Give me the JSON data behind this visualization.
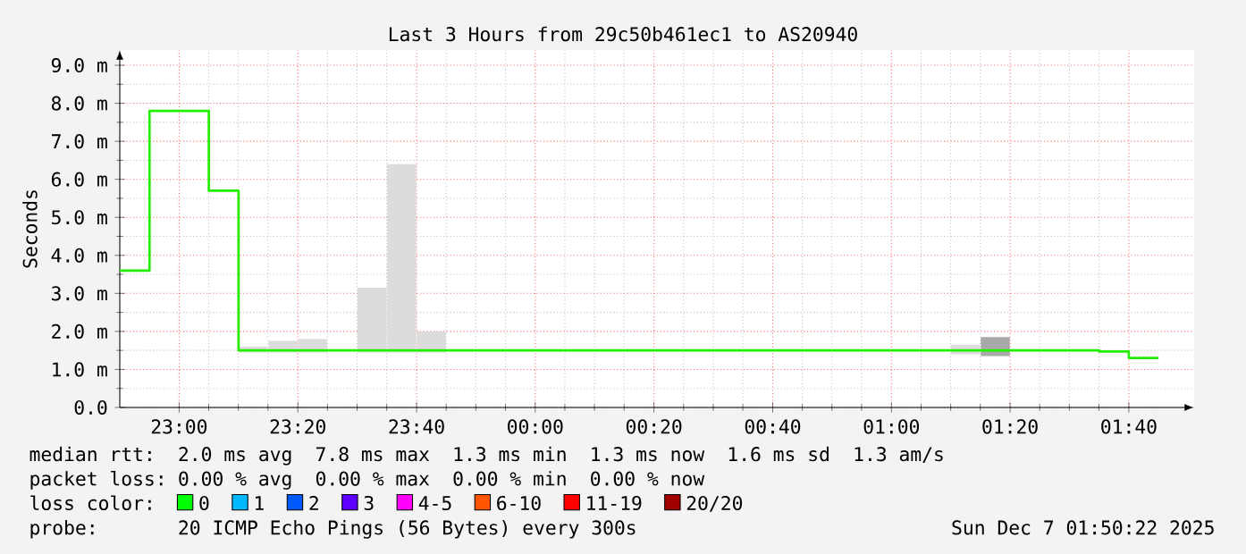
{
  "chart_data": {
    "type": "step",
    "title": "Last 3 Hours from 29c50b461ec1 to AS20940",
    "ylabel": "Seconds",
    "xlim": [
      "2025-12-06T22:50",
      "2025-12-07T01:51"
    ],
    "ylim": [
      0,
      9.4
    ],
    "xticks": [
      {
        "value": "2025-12-06T23:00",
        "label": "23:00"
      },
      {
        "value": "2025-12-06T23:20",
        "label": "23:20"
      },
      {
        "value": "2025-12-06T23:40",
        "label": "23:40"
      },
      {
        "value": "2025-12-07T00:00",
        "label": "00:00"
      },
      {
        "value": "2025-12-07T00:20",
        "label": "00:20"
      },
      {
        "value": "2025-12-07T00:40",
        "label": "00:40"
      },
      {
        "value": "2025-12-07T01:00",
        "label": "01:00"
      },
      {
        "value": "2025-12-07T01:20",
        "label": "01:20"
      },
      {
        "value": "2025-12-07T01:40",
        "label": "01:40"
      }
    ],
    "yticks": [
      {
        "value": 0,
        "label": "0.0"
      },
      {
        "value": 1,
        "label": "1.0 m"
      },
      {
        "value": 2,
        "label": "2.0 m"
      },
      {
        "value": 3,
        "label": "3.0 m"
      },
      {
        "value": 4,
        "label": "4.0 m"
      },
      {
        "value": 5,
        "label": "5.0 m"
      },
      {
        "value": 6,
        "label": "6.0 m"
      },
      {
        "value": 7,
        "label": "7.0 m"
      },
      {
        "value": 8,
        "label": "8.0 m"
      },
      {
        "value": 9,
        "label": "9.0 m"
      }
    ],
    "grid": true,
    "series": [
      {
        "type": "bar",
        "x": [
          "2025-12-06T23:12:30",
          "2025-12-06T23:17:30",
          "2025-12-06T23:22:30",
          "2025-12-06T23:32:30",
          "2025-12-06T23:37:30",
          "2025-12-06T23:42:30",
          "2025-12-07T01:12:30",
          "2025-12-07T01:17:30"
        ],
        "base": [
          1.45,
          1.45,
          1.45,
          1.45,
          1.45,
          1.45,
          1.4,
          1.35
        ],
        "values": [
          0.15,
          0.3,
          0.35,
          1.7,
          4.95,
          0.55,
          0.25,
          0.5
        ],
        "colors": [
          "#dcdcdc",
          "#dcdcdc",
          "#dcdcdc",
          "#dcdcdc",
          "#dcdcdc",
          "#dcdcdc",
          "#dcdcdc",
          "#a8a8a8"
        ]
      },
      {
        "color": "#22ee00",
        "x": [
          "2025-12-06T22:50",
          "2025-12-06T22:55",
          "2025-12-06T23:05",
          "2025-12-06T23:10",
          "2025-12-07T01:35",
          "2025-12-07T01:40",
          "2025-12-07T01:45"
        ],
        "values": [
          3.6,
          7.8,
          5.7,
          1.5,
          1.47,
          1.3,
          1.3
        ]
      }
    ],
    "annotations": [
      "median rtt:",
      "2.0 ms avg",
      "7.8 ms max",
      "1.3 ms min",
      "1.3 ms now",
      "1.6 ms sd",
      "1.3 am/s",
      "packet loss:",
      "0.00 % avg",
      "0.00 % max",
      "0.00 % min",
      "0.00 % now",
      "loss color:",
      "0",
      "1",
      "2",
      "3",
      "4-5",
      "6-10",
      "11-19",
      "20/20",
      "probe:",
      "20 ICMP Echo Pings (56 Bytes) every 300s",
      "Sun Dec 7 01:50:22 2025"
    ]
  }
}
